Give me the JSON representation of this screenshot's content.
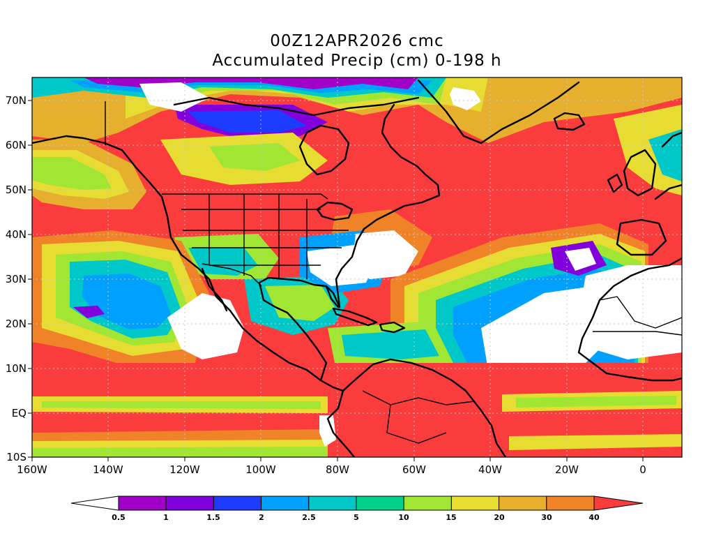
{
  "title": {
    "line1": "00Z12APR2026 cmc",
    "line2": "Accumulated Precip (cm) 0-198 h"
  },
  "map": {
    "longitude_range": [
      -160,
      10
    ],
    "latitude_range": [
      -10,
      75
    ],
    "lat_labels": [
      "70N",
      "60N",
      "50N",
      "40N",
      "30N",
      "20N",
      "10N",
      "EQ",
      "10S"
    ],
    "lon_labels": [
      "160W",
      "140W",
      "120W",
      "100W",
      "80W",
      "60W",
      "40W",
      "20W",
      "0"
    ],
    "gridlines": "dotted"
  },
  "colorbar": {
    "labels": [
      "0.5",
      "1",
      "1.5",
      "2",
      "2.5",
      "5",
      "10",
      "15",
      "20",
      "30",
      "40"
    ],
    "colors": [
      "#a000c8",
      "#8200dc",
      "#1e3cff",
      "#00a0ff",
      "#00c8c8",
      "#00d28c",
      "#a0e632",
      "#e6dc32",
      "#e6af2d",
      "#f08228",
      "#fa3c3c"
    ],
    "below_color": "#ffffff",
    "above_color": "#fa3c3c"
  }
}
